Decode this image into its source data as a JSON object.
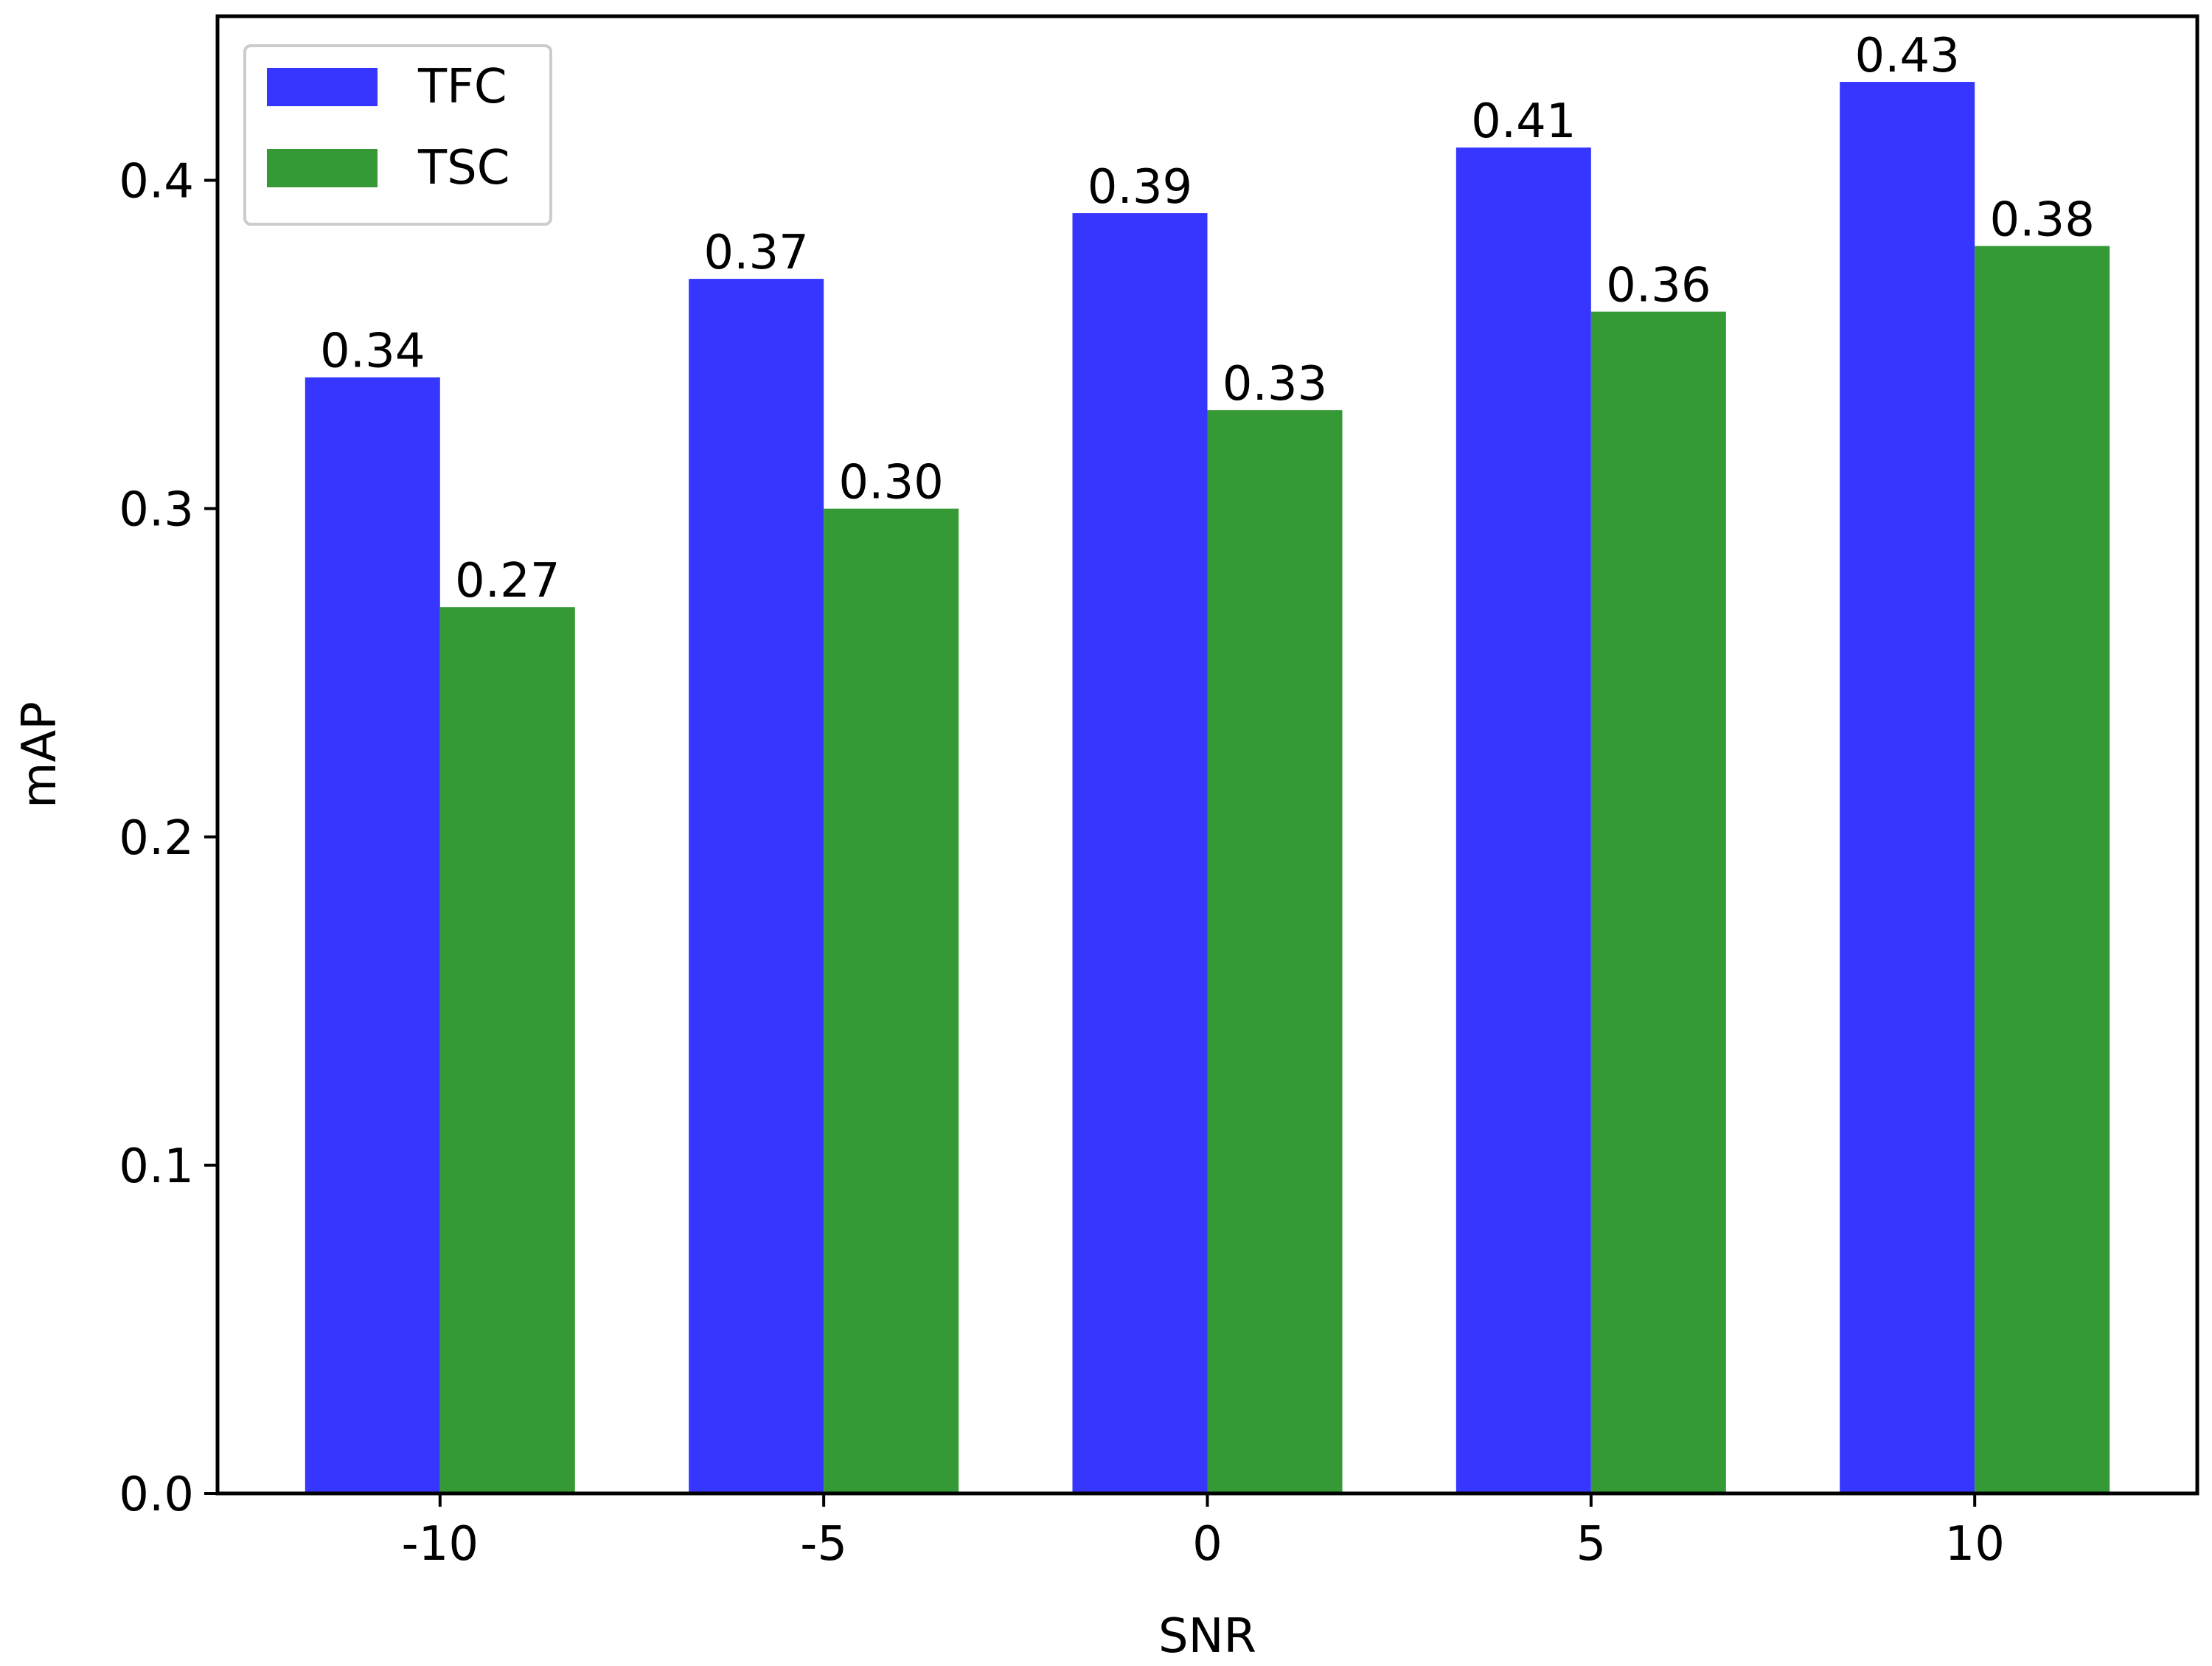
{
  "chart_data": {
    "type": "bar",
    "title": "",
    "xlabel": "SNR",
    "ylabel": "mAP",
    "categories": [
      "-10",
      "-5",
      "0",
      "5",
      "10"
    ],
    "series": [
      {
        "name": "TFC",
        "color": "#3636ff",
        "values": [
          0.34,
          0.37,
          0.39,
          0.41,
          0.43
        ],
        "labels": [
          "0.34",
          "0.37",
          "0.39",
          "0.41",
          "0.43"
        ]
      },
      {
        "name": "TSC",
        "color": "#359a35",
        "values": [
          0.27,
          0.3,
          0.33,
          0.36,
          0.38
        ],
        "labels": [
          "0.27",
          "0.30",
          "0.33",
          "0.36",
          "0.38"
        ]
      }
    ],
    "ylim": [
      0,
      0.45
    ],
    "yticks": [
      0.0,
      0.1,
      0.2,
      0.3,
      0.4
    ],
    "ytick_labels": [
      "0.0",
      "0.1",
      "0.2",
      "0.3",
      "0.4"
    ],
    "grid": false,
    "legend_position": "top-left"
  }
}
